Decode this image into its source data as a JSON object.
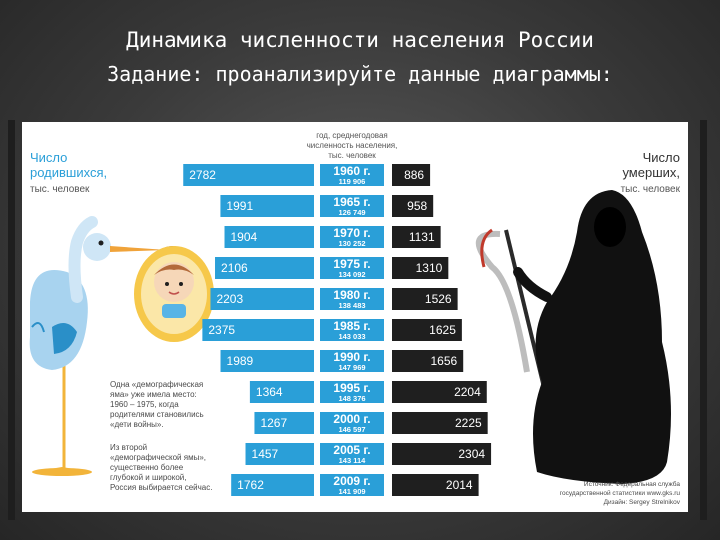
{
  "slide": {
    "title": "Динамика численности населения России",
    "subtitle": "Задание: проанализируйте данные диаграммы:"
  },
  "chart_data": {
    "type": "bar",
    "left_label": [
      "Число",
      "родившихся,",
      "тыс. человек"
    ],
    "right_label": [
      "Число",
      "умерших,",
      "тыс. человек"
    ],
    "center_header": [
      "год, среднегодовая",
      "численность населения,",
      "тыс. человек"
    ],
    "years": [
      "1960 г.",
      "1965 г.",
      "1970 г.",
      "1975 г.",
      "1980 г.",
      "1985 г.",
      "1990 г.",
      "1995 г.",
      "2000 г.",
      "2005 г.",
      "2009 г."
    ],
    "population": [
      "119 906",
      "126 749",
      "130 252",
      "134 092",
      "138 483",
      "143 033",
      "147 969",
      "148 376",
      "146 597",
      "143 114",
      "141 909"
    ],
    "series": [
      {
        "name": "Число родившихся",
        "values": [
          2782,
          1991,
          1904,
          2106,
          2203,
          2375,
          1989,
          1364,
          1267,
          1457,
          1762
        ]
      },
      {
        "name": "Число умерших",
        "values": [
          886,
          958,
          1131,
          1310,
          1526,
          1625,
          1656,
          2204,
          2225,
          2304,
          2014
        ]
      }
    ],
    "annotations": [
      [
        "Одна «демографическая",
        "яма» уже имела место:",
        "1960 – 1975, когда",
        "родителями становились",
        "«дети войны»."
      ],
      [
        "Из второй",
        "«демографической ямы»,",
        "существенно более",
        "глубокой и широкой,",
        "Россия выбирается сейчас."
      ]
    ],
    "source": [
      "Источник: Федеральная служба",
      "государственной статистики www.gks.ru",
      "Дизайн: Sergey Strelnikov"
    ],
    "colors": {
      "births": "#2a9fd8",
      "deaths": "#1f1f1f",
      "years": "#2a9fd8"
    }
  }
}
